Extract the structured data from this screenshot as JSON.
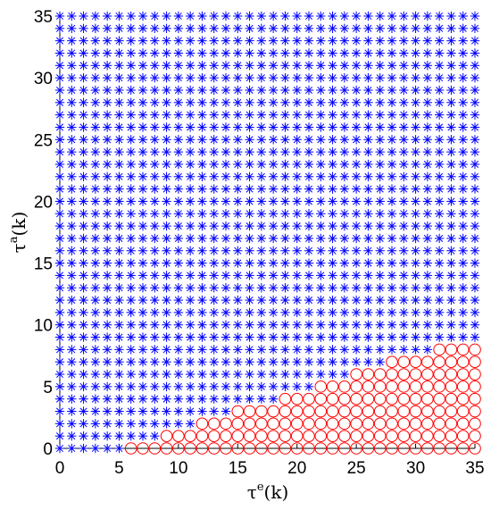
{
  "chart_data": {
    "type": "scatter",
    "xlabel": {
      "base": "τ",
      "sup": "e",
      "suffix": "(k)"
    },
    "ylabel": {
      "base": "τ",
      "sup": "a",
      "suffix": "(k)"
    },
    "xlim": [
      0,
      35
    ],
    "ylim": [
      0,
      35
    ],
    "xticks": [
      "0",
      "5",
      "10",
      "15",
      "20",
      "25",
      "30",
      "35"
    ],
    "yticks": [
      "0",
      "5",
      "10",
      "15",
      "20",
      "25",
      "30",
      "35"
    ],
    "grid": false,
    "x": "integers 0..35",
    "y": "integers 0..35",
    "series": [
      {
        "marker": "asterisk",
        "color": "#0000ff",
        "rule": "all grid points not in the circle region"
      },
      {
        "marker": "circle",
        "color": "#ff0000",
        "rule": "points with x >= 6 and y <= region_max_y[x]"
      }
    ],
    "region_max_y": [
      -1,
      -1,
      -1,
      -1,
      -1,
      -1,
      0,
      0,
      0,
      1,
      1,
      1,
      2,
      2,
      2,
      3,
      3,
      3,
      3,
      4,
      4,
      4,
      5,
      5,
      5,
      6,
      6,
      6,
      7,
      7,
      7,
      7,
      8,
      8,
      8,
      8
    ]
  }
}
